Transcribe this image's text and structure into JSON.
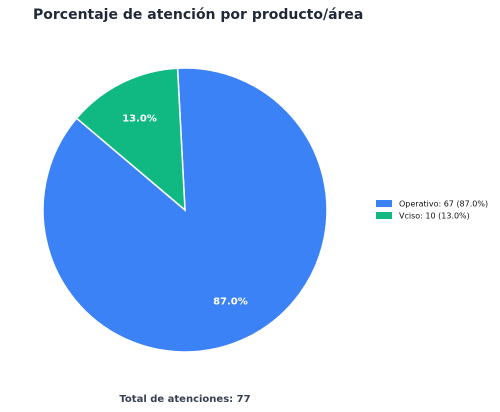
{
  "chart_data": {
    "type": "pie",
    "title": "Porcentaje de atención por producto/área",
    "categories": [
      "Operativo",
      "Vciso"
    ],
    "values": [
      67,
      10
    ],
    "value_labels": [
      "87.0%",
      "13.0%"
    ],
    "legend_labels": [
      "Operativo: 67 (87.0%)",
      "Vciso: 10 (13.0%)"
    ],
    "colors": [
      "#3b82f6",
      "#10b981"
    ],
    "footer": "Total de atenciones: 77"
  }
}
